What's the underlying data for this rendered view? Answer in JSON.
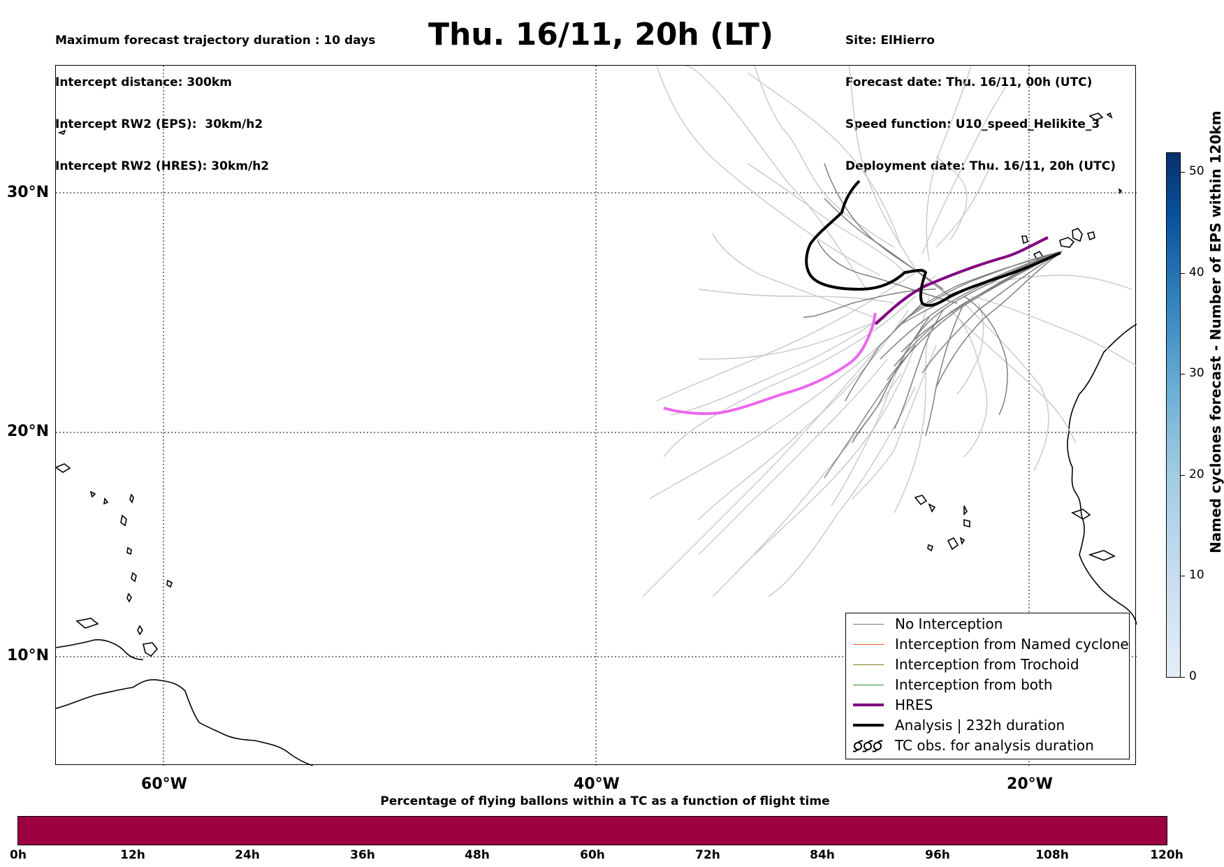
{
  "header_left": [
    "Maximum forecast trajectory duration : 10 days",
    "Intercept distance: 300km",
    "Intercept RW2 (EPS):  30km/h2",
    "Intercept RW2 (HRES): 30km/h2"
  ],
  "title": "Thu. 16/11, 20h (LT)",
  "header_right": [
    "Site: ElHierro",
    "Forecast date: Thu. 16/11, 00h (UTC)",
    "Speed function: U10_speed_Helikite_3",
    "Deployment date: Thu. 16/11, 20h (UTC)"
  ],
  "map": {
    "lat_labels": [
      "30°N",
      "20°N",
      "10°N"
    ],
    "lon_labels": [
      "60°W",
      "40°W",
      "20°W"
    ],
    "lat_range": [
      5.5,
      34.8
    ],
    "lon_range": [
      -65,
      -15
    ],
    "gridlines": {
      "lats": [
        30,
        20,
        10
      ],
      "lons": [
        -60,
        -40,
        -20
      ]
    },
    "colors": {
      "no_interception": "#808080",
      "ensemble_light": "#c8c8c8",
      "named_cyclone": "#e2571e",
      "trochoid": "#7f7f1f",
      "both": "#2a8a2a",
      "hres": "#800080",
      "hres_light": "#ee66ee",
      "analysis": "#000000"
    }
  },
  "legend": {
    "items": [
      {
        "label": "No Interception",
        "color": "#808080",
        "width": 1.5,
        "icon": "line"
      },
      {
        "label": "Interception from Named cyclone",
        "color": "#e2571e",
        "width": 1.5,
        "icon": "line"
      },
      {
        "label": "Interception from Trochoid",
        "color": "#7f7f1f",
        "width": 1.5,
        "icon": "line"
      },
      {
        "label": "Interception from both",
        "color": "#2a8a2a",
        "width": 1.5,
        "icon": "line"
      },
      {
        "label": "HRES",
        "color": "#800080",
        "width": 4,
        "icon": "line"
      },
      {
        "label": "Analysis | 232h duration",
        "color": "#000000",
        "width": 4,
        "icon": "line"
      },
      {
        "label": "TC obs. for analysis duration",
        "color": "#000000",
        "width": 0,
        "icon": "cyclone-symbols-icon"
      }
    ]
  },
  "colorbar_right": {
    "label": "Named cyclones forecast - Number of EPS within 120km",
    "ticks": [
      "0",
      "10",
      "20",
      "30",
      "40",
      "50"
    ],
    "range": [
      0,
      52
    ]
  },
  "colorbar_bottom": {
    "caption": "Percentage of flying ballons within a TC as a function of flight time",
    "ticks": [
      "0h",
      "12h",
      "24h",
      "36h",
      "48h",
      "60h",
      "72h",
      "84h",
      "96h",
      "108h",
      "120h"
    ],
    "fill_color": "#9e0142"
  }
}
